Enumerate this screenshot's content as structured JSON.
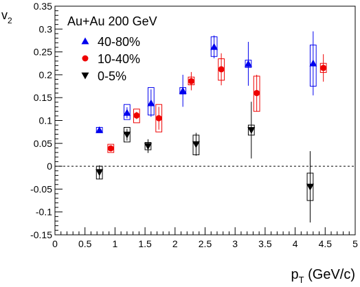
{
  "chart_data": {
    "type": "scatter",
    "ylabel_main": "v",
    "ylabel_sub": "2",
    "xlabel_main": "p",
    "xlabel_sub": "T",
    "xlabel_unit": " (GeV/c)",
    "xlim": [
      0,
      5
    ],
    "ylim": [
      -0.15,
      0.35
    ],
    "x_ticks": [
      0,
      0.5,
      1,
      1.5,
      2,
      2.5,
      3,
      3.5,
      4,
      4.5,
      5
    ],
    "x_tick_labels": [
      "0",
      "0.5",
      "1",
      "1.5",
      "2",
      "2.5",
      "3",
      "3.5",
      "4",
      "4.5",
      "5"
    ],
    "y_ticks": [
      -0.15,
      -0.1,
      -0.05,
      0,
      0.05,
      0.1,
      0.15,
      0.2,
      0.25,
      0.3,
      0.35
    ],
    "y_tick_labels": [
      "-0.15",
      "-0.1",
      "-0.05",
      "0",
      "0.05",
      "0.1",
      "0.15",
      "0.2",
      "0.25",
      "0.3",
      "0.35"
    ],
    "zero_line": true,
    "legend_title": "Au+Au 200 GeV",
    "legend_placement": "top-left",
    "series": [
      {
        "name": "40-80%",
        "marker": "triangle-up",
        "color": "#0000ee",
        "points": [
          {
            "x": 0.74,
            "y": 0.079,
            "stat": 0.006,
            "sys": [
              0.075,
              0.085
            ],
            "bw": 0.1
          },
          {
            "x": 1.2,
            "y": 0.117,
            "stat": 0.012,
            "sys": [
              0.102,
              0.135
            ],
            "bw": 0.1
          },
          {
            "x": 1.6,
            "y": 0.138,
            "stat": 0.03,
            "sys": [
              0.112,
              0.172
            ],
            "bw": 0.1
          },
          {
            "x": 2.13,
            "y": 0.165,
            "stat": 0.035,
            "sys": [
              0.158,
              0.172
            ],
            "bw": 0.1
          },
          {
            "x": 2.65,
            "y": 0.261,
            "stat": 0.025,
            "sys": [
              0.24,
              0.283
            ],
            "bw": 0.1
          },
          {
            "x": 3.22,
            "y": 0.224,
            "stat": 0.048,
            "sys": [
              0.216,
              0.232
            ],
            "bw": 0.1
          },
          {
            "x": 4.3,
            "y": 0.225,
            "stat": 0.07,
            "sys": [
              0.175,
              0.265
            ],
            "bw": 0.1
          }
        ]
      },
      {
        "name": "10-40%",
        "marker": "circle",
        "color": "#ee0000",
        "points": [
          {
            "x": 0.93,
            "y": 0.039,
            "stat": 0.006,
            "sys": [
              0.03,
              0.048
            ],
            "bw": 0.1
          },
          {
            "x": 1.36,
            "y": 0.111,
            "stat": 0.008,
            "sys": [
              0.095,
              0.125
            ],
            "bw": 0.1
          },
          {
            "x": 1.73,
            "y": 0.105,
            "stat": 0.025,
            "sys": [
              0.075,
              0.135
            ],
            "bw": 0.1
          },
          {
            "x": 2.27,
            "y": 0.186,
            "stat": 0.02,
            "sys": [
              0.178,
              0.195
            ],
            "bw": 0.1
          },
          {
            "x": 2.77,
            "y": 0.212,
            "stat": 0.035,
            "sys": [
              0.188,
              0.235
            ],
            "bw": 0.1
          },
          {
            "x": 3.36,
            "y": 0.16,
            "stat": 0.04,
            "sys": [
              0.12,
              0.197
            ],
            "bw": 0.1
          },
          {
            "x": 4.47,
            "y": 0.215,
            "stat": 0.03,
            "sys": [
              0.205,
              0.225
            ],
            "bw": 0.1
          }
        ]
      },
      {
        "name": "0-5%",
        "marker": "triangle-down",
        "color": "#000000",
        "points": [
          {
            "x": 0.74,
            "y": -0.013,
            "stat": 0.015,
            "sys": [
              -0.028,
              0.0
            ],
            "bw": 0.1
          },
          {
            "x": 1.2,
            "y": 0.069,
            "stat": 0.013,
            "sys": [
              0.053,
              0.085
            ],
            "bw": 0.1
          },
          {
            "x": 1.55,
            "y": 0.044,
            "stat": 0.015,
            "sys": [
              0.036,
              0.052
            ],
            "bw": 0.1
          },
          {
            "x": 2.35,
            "y": 0.048,
            "stat": 0.025,
            "sys": [
              0.025,
              0.068
            ],
            "bw": 0.1
          },
          {
            "x": 3.27,
            "y": 0.079,
            "stat": 0.062,
            "sys": [
              0.068,
              0.09
            ],
            "bw": 0.1
          },
          {
            "x": 4.25,
            "y": -0.045,
            "stat": 0.078,
            "sys": [
              -0.075,
              -0.015
            ],
            "bw": 0.1
          }
        ]
      }
    ]
  }
}
